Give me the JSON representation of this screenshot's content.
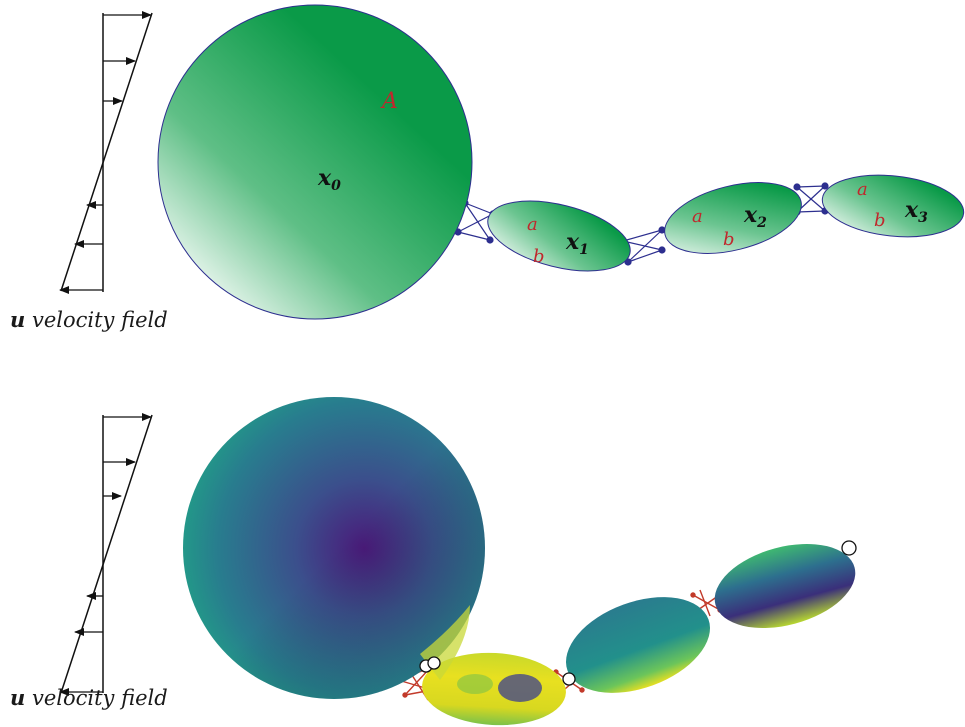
{
  "top_panel": {
    "body_large_label": "A",
    "center_labels": [
      "x",
      "x",
      "x",
      "x"
    ],
    "center_subscripts": [
      "0",
      "1",
      "2",
      "3"
    ],
    "axis_a_label": "a",
    "axis_b_label": "b",
    "velocity_symbol": "u",
    "velocity_caption": "velocity field"
  },
  "bottom_panel": {
    "velocity_symbol": "u",
    "velocity_caption": "velocity field"
  },
  "colors": {
    "label_red": "#c0282d",
    "green_dark": "#0a9a48",
    "link_blue": "#2d2f8f",
    "link_red": "#c23a2a",
    "viridis_purple": "#4a1a7a",
    "viridis_teal": "#1f8f8a",
    "viridis_yellow": "#e8e020"
  }
}
